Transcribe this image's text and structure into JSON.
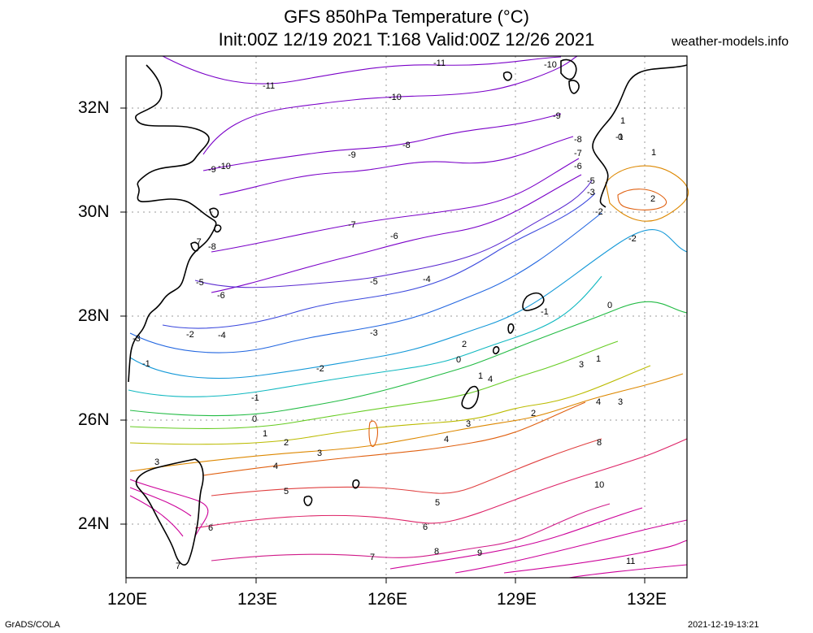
{
  "title_line1": "GFS 850hPa Temperature (°C)",
  "title_line2": "Init:00Z 12/19 2021 T:168 Valid:00Z 12/26 2021",
  "site": "weather-models.info",
  "footer_left": "GrADS/COLA",
  "footer_right": "2021-12-19-13:21",
  "lon_labels": [
    "120E",
    "123E",
    "126E",
    "129E",
    "132E"
  ],
  "lat_labels": [
    "32N",
    "30N",
    "28N",
    "26N",
    "24N"
  ],
  "lon_ticks": [
    120,
    123,
    126,
    129,
    132
  ],
  "lat_ticks": [
    32,
    30,
    28,
    26,
    24
  ],
  "extent": {
    "lon": [
      120,
      133
    ],
    "lat": [
      23,
      33
    ]
  },
  "contour_labels": [
    "-11",
    "-11",
    "-10",
    "-10",
    "-10",
    "-9",
    "-9",
    "-9",
    "-8",
    "-8",
    "-8",
    "-7",
    "-7",
    "-7",
    "-6",
    "-6",
    "-6",
    "-5",
    "-5",
    "-5",
    "-4",
    "-4",
    "-3",
    "-3",
    "-3",
    "-2",
    "-2",
    "-2",
    "-2",
    "-1",
    "-1",
    "-1",
    "-1",
    "0",
    "0",
    "0",
    "0",
    "1",
    "1",
    "1",
    "1",
    "1",
    "2",
    "2",
    "2",
    "2",
    "3",
    "3",
    "3",
    "3",
    "3",
    "4",
    "4",
    "4",
    "4",
    "5",
    "5",
    "6",
    "6",
    "7",
    "7",
    "8",
    "8",
    "9",
    "10",
    "11"
  ],
  "colors": {
    "cold": "#7700bb",
    "mid": "#00aacc",
    "warm": "#ee6600",
    "hot": "#cc0099"
  }
}
